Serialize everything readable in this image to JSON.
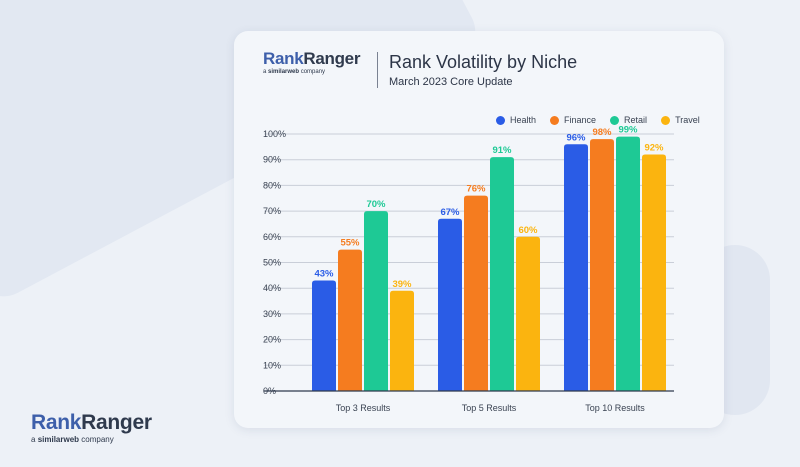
{
  "brand": {
    "rank": "Rank",
    "ranger": "Ranger",
    "sub_prefix": "a",
    "sub_brand": "similarweb",
    "sub_suffix": "company"
  },
  "chart_data": {
    "type": "bar",
    "title": "Rank Volatility by Niche",
    "subtitle": "March 2023 Core Update",
    "categories": [
      "Top 3 Results",
      "Top 5 Results",
      "Top 10 Results"
    ],
    "series": [
      {
        "name": "Health",
        "color": "#2a5ce6",
        "values": [
          43,
          67,
          96
        ],
        "labels": [
          "43%",
          "67%",
          "96%"
        ]
      },
      {
        "name": "Finance",
        "color": "#f57c1f",
        "values": [
          55,
          76,
          98
        ],
        "labels": [
          "55%",
          "76%",
          "98%"
        ]
      },
      {
        "name": "Retail",
        "color": "#1ec995",
        "values": [
          70,
          91,
          99
        ],
        "labels": [
          "70%",
          "91%",
          "99%"
        ]
      },
      {
        "name": "Travel",
        "color": "#fbb40f",
        "values": [
          39,
          60,
          92
        ],
        "labels": [
          "39%",
          "60%",
          "92%"
        ]
      }
    ],
    "ylim": [
      0,
      100
    ],
    "yticks": [
      "0%",
      "10%",
      "20%",
      "30%",
      "40%",
      "50%",
      "60%",
      "70%",
      "80%",
      "90%",
      "100%"
    ],
    "grid": true,
    "legend_position": "top-right"
  }
}
